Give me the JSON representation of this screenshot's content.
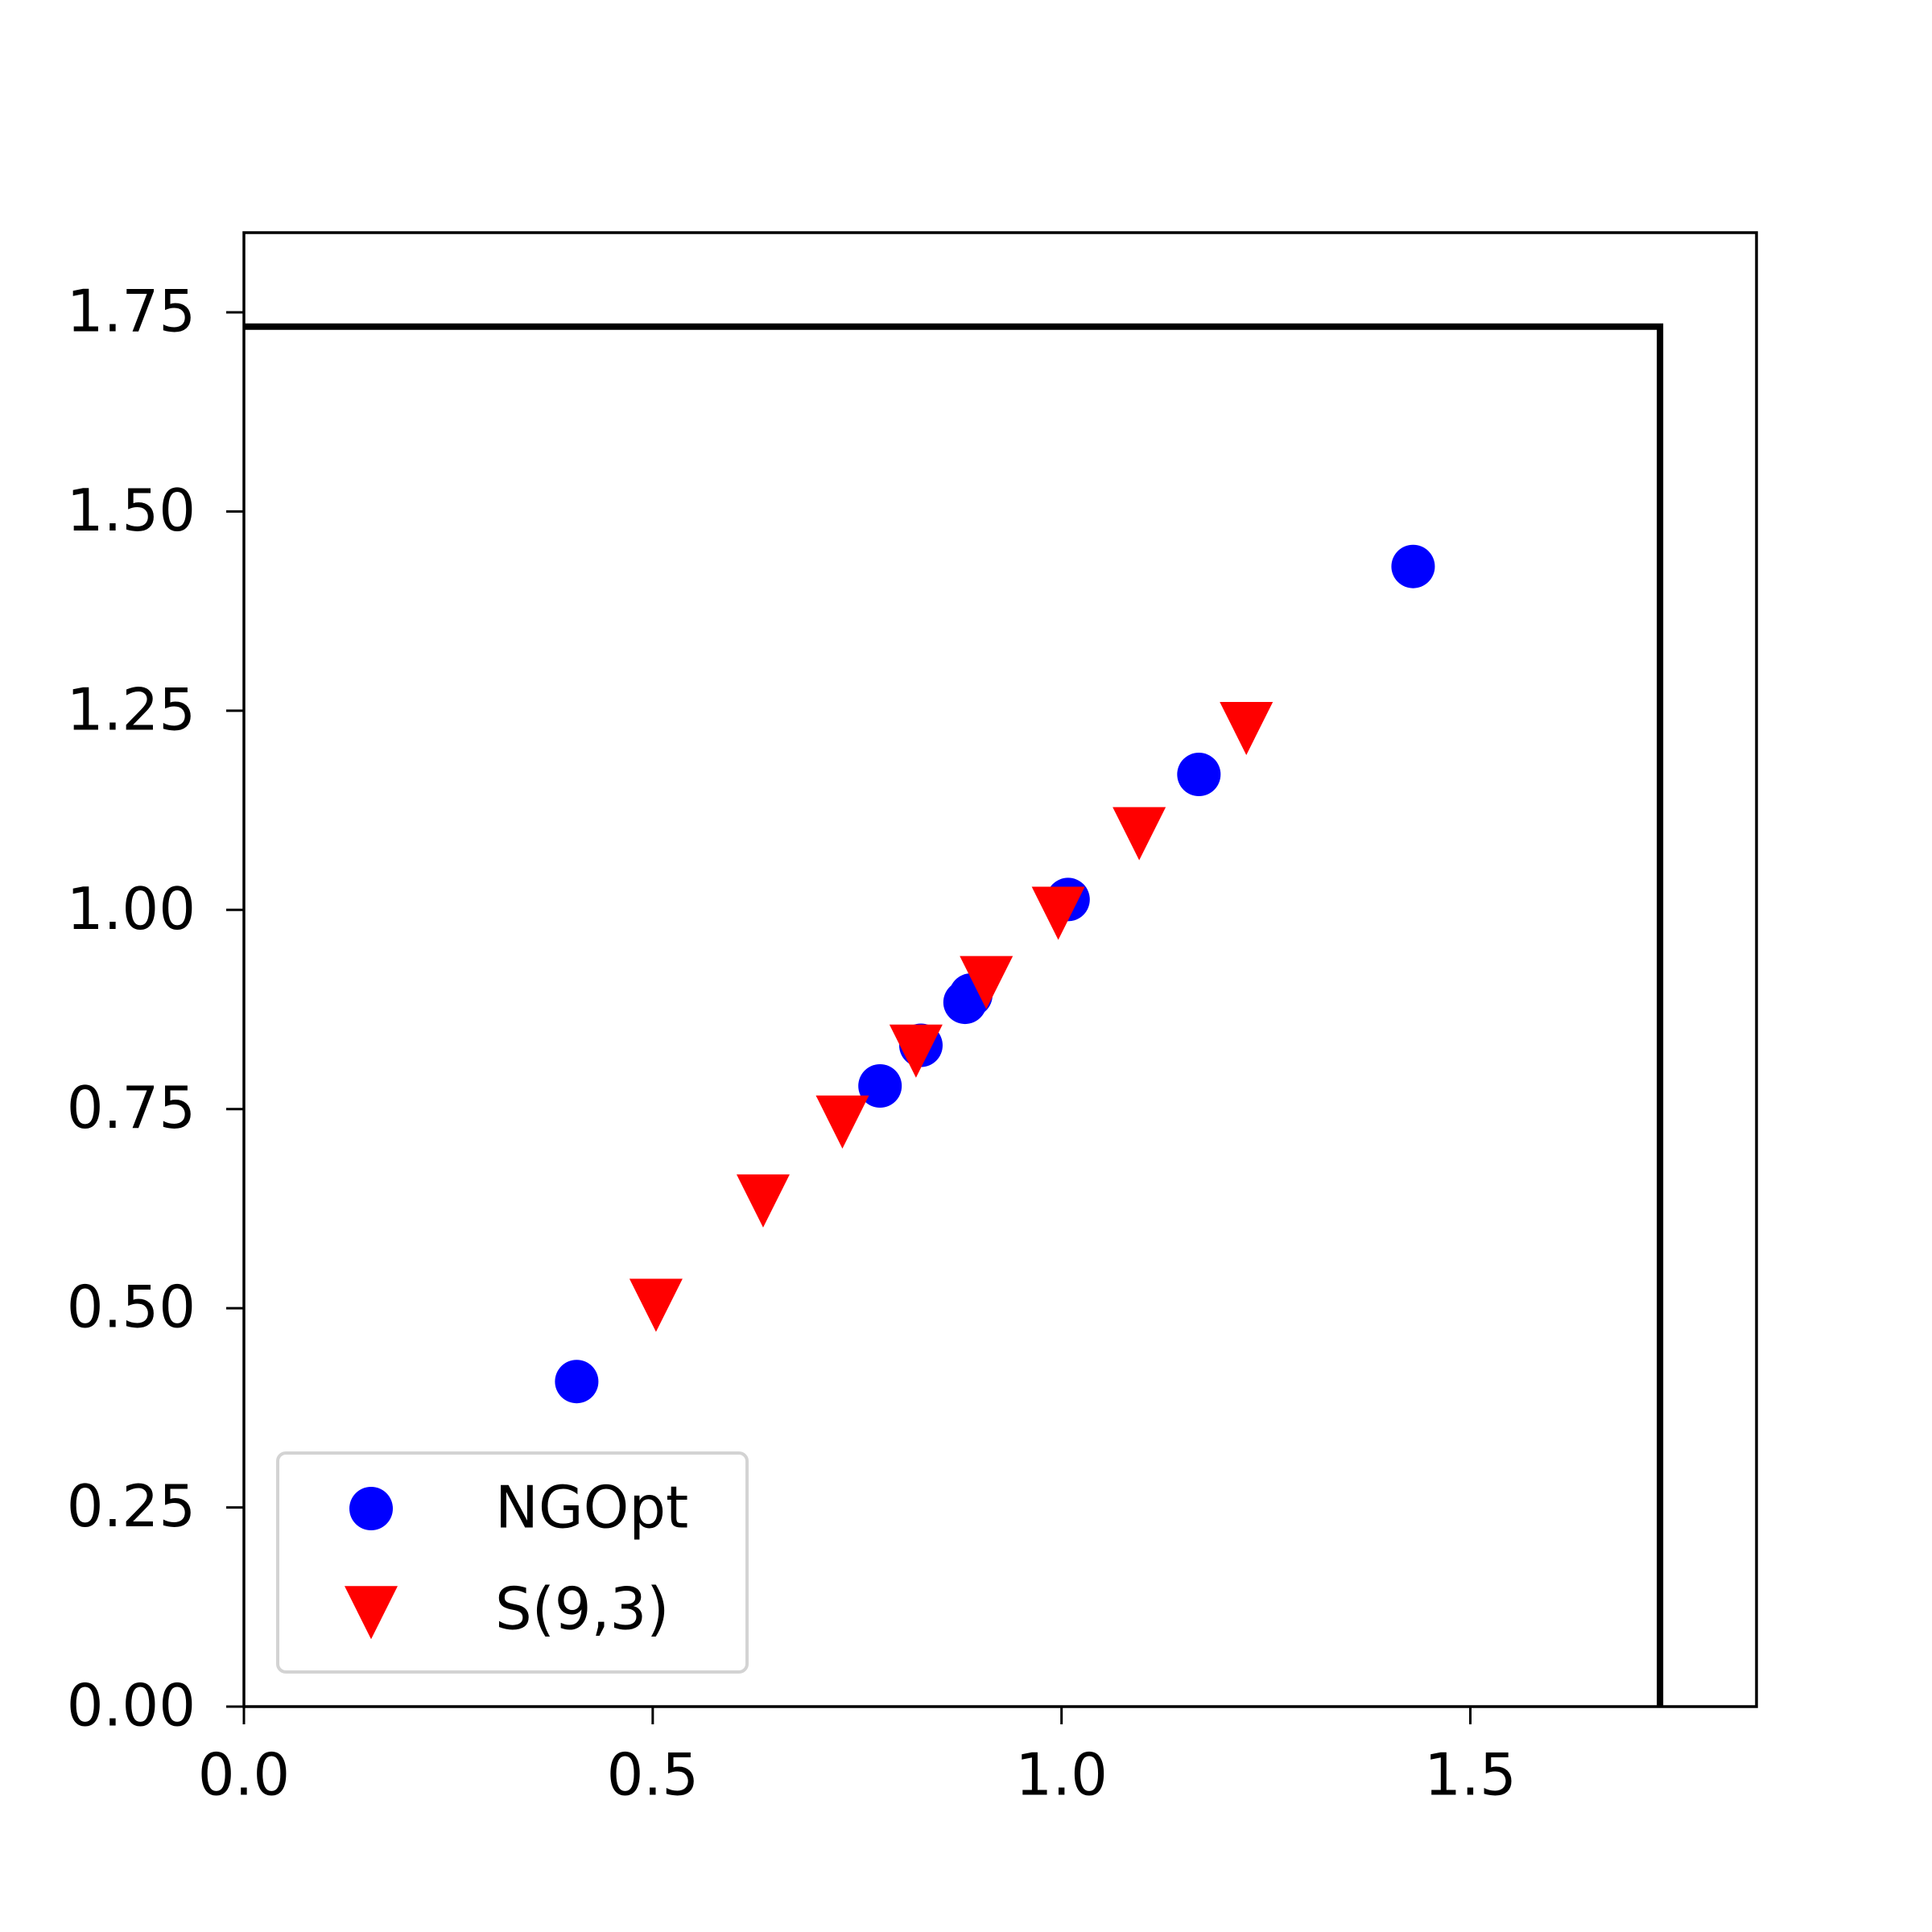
{
  "chart_data": {
    "type": "scatter",
    "xlim": [
      0,
      1.85
    ],
    "ylim": [
      0,
      1.85
    ],
    "xticks": [
      {
        "value": 0,
        "label": "0.0"
      },
      {
        "value": 0.5,
        "label": "0.5"
      },
      {
        "value": 1,
        "label": "1.0"
      },
      {
        "value": 1.5,
        "label": "1.5"
      }
    ],
    "yticks": [
      {
        "value": 0,
        "label": "0.00"
      },
      {
        "value": 0.25,
        "label": "0.25"
      },
      {
        "value": 0.5,
        "label": "0.50"
      },
      {
        "value": 0.75,
        "label": "0.75"
      },
      {
        "value": 1,
        "label": "1.00"
      },
      {
        "value": 1.25,
        "label": "1.25"
      },
      {
        "value": 1.5,
        "label": "1.50"
      },
      {
        "value": 1.75,
        "label": "1.75"
      }
    ],
    "legend": "lower left",
    "series": [
      {
        "name": "NGOpt",
        "color": "#0000ff",
        "marker": "circle",
        "x": [
          0.407,
          0.778,
          0.828,
          0.882,
          0.889,
          1.008,
          1.168,
          1.43
        ],
        "values": [
          0.408,
          0.779,
          0.83,
          0.884,
          0.893,
          1.013,
          1.17,
          1.431
        ]
      },
      {
        "name": "S(9,3)",
        "color": "#ff0000",
        "marker": "triangle-down",
        "x": [
          0.504,
          0.635,
          0.732,
          0.822,
          0.908,
          0.996,
          1.095,
          1.226
        ],
        "values": [
          0.507,
          0.638,
          0.737,
          0.826,
          0.912,
          0.999,
          1.099,
          1.231
        ]
      }
    ],
    "lines": [
      {
        "color": "#000000",
        "x": [
          0,
          1.732,
          1.732
        ],
        "values": [
          1.732,
          1.732,
          0
        ]
      }
    ]
  }
}
